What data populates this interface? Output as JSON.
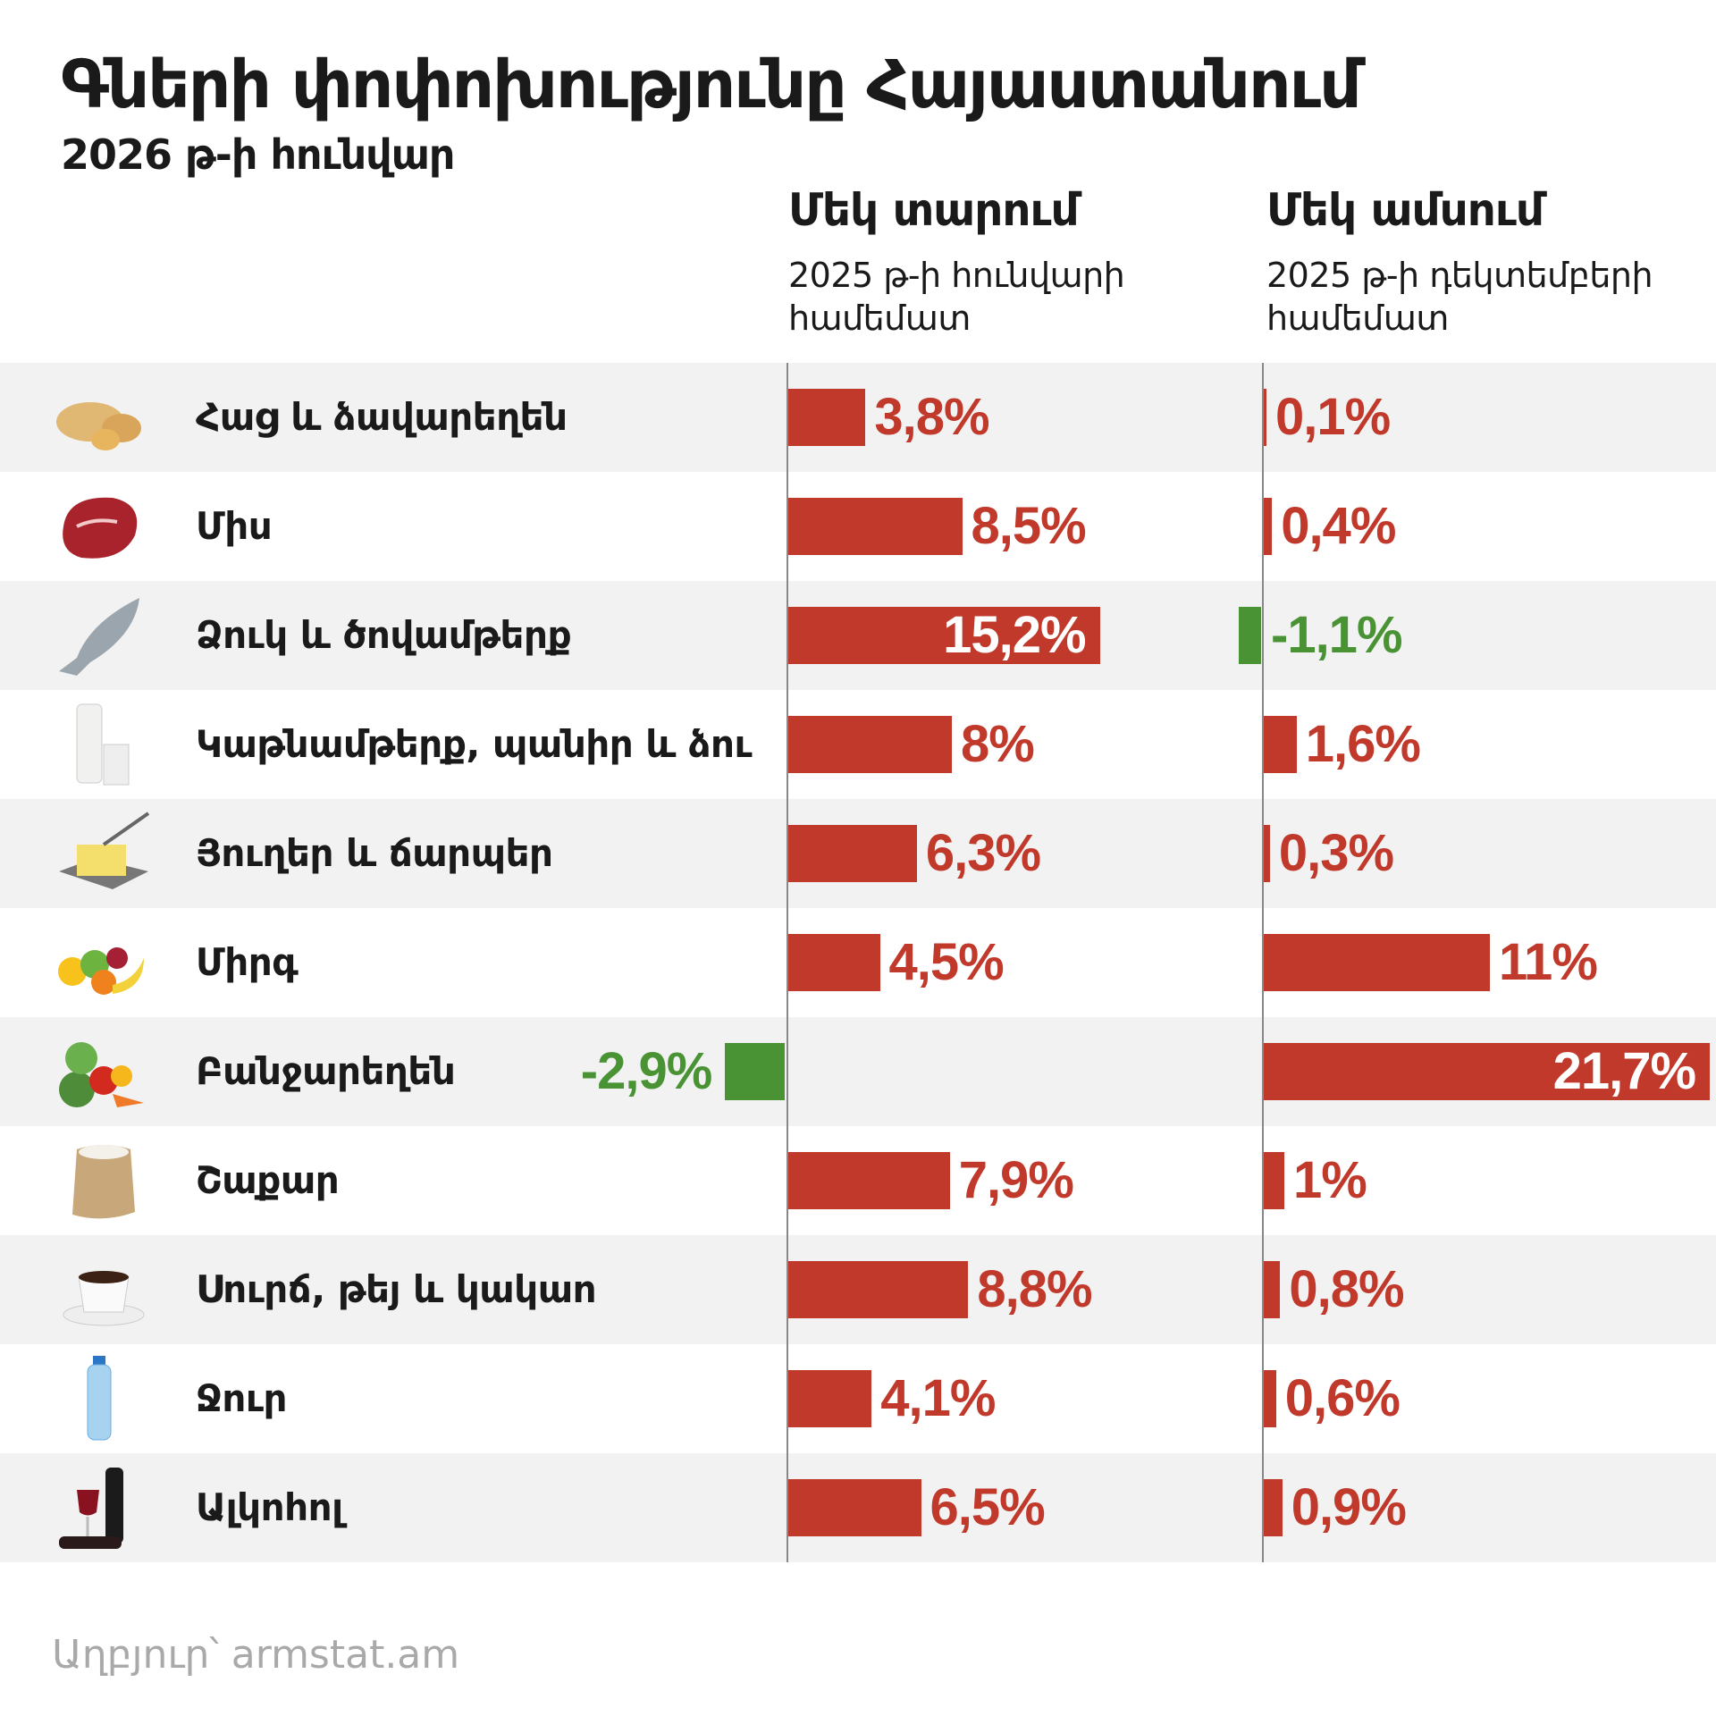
{
  "title": "Գների փոփոխությունը Հայաստանում",
  "subtitle": "2026 թ-ի հունվար",
  "footer": "Աղբյուր՝ armstat.am",
  "colors": {
    "positive": "#c0392b",
    "negative": "#4a9334",
    "row_alt": "#f2f2f2"
  },
  "chart_data": {
    "type": "bar",
    "orientation": "horizontal",
    "unit": "%",
    "categories": [
      "Հաց և ձավարեղեն",
      "Միս",
      "Ձուկ և ծովամթերք",
      "Կաթնամթերք, պանիր և ձու",
      "Յուղեր և ճարպեր",
      "Միրգ",
      "Բանջարեղեն",
      "Շաքար",
      "Սուրճ, թեյ և կակաո",
      "Ջուր",
      "Ալկոհոլ"
    ],
    "icons": [
      "bread-icon",
      "meat-icon",
      "fish-icon",
      "milk-icon",
      "butter-icon",
      "fruit-icon",
      "vegetables-icon",
      "sugar-sack-icon",
      "coffee-cup-icon",
      "water-bottle-icon",
      "wine-icon"
    ],
    "series": [
      {
        "name": "Մեկ տարում",
        "subtitle": "2025 թ-ի հունվարի համեմատ",
        "values": [
          3.8,
          8.5,
          15.2,
          8,
          6.3,
          4.5,
          -2.9,
          7.9,
          8.8,
          4.1,
          6.5
        ],
        "labels": [
          "3,8%",
          "8,5%",
          "15,2%",
          "8%",
          "6,3%",
          "4,5%",
          "-2,9%",
          "7,9%",
          "8,8%",
          "4,1%",
          "6,5%"
        ]
      },
      {
        "name": "Մեկ ամսում",
        "subtitle": "2025 թ-ի դեկտեմբերի համեմատ",
        "values": [
          0.1,
          0.4,
          -1.1,
          1.6,
          0.3,
          11,
          21.7,
          1,
          0.8,
          0.6,
          0.9
        ],
        "labels": [
          "0,1%",
          "0,4%",
          "-1,1%",
          "1,6%",
          "0,3%",
          "11%",
          "21,7%",
          "1%",
          "0,8%",
          "0,6%",
          "0,9%"
        ]
      }
    ]
  }
}
